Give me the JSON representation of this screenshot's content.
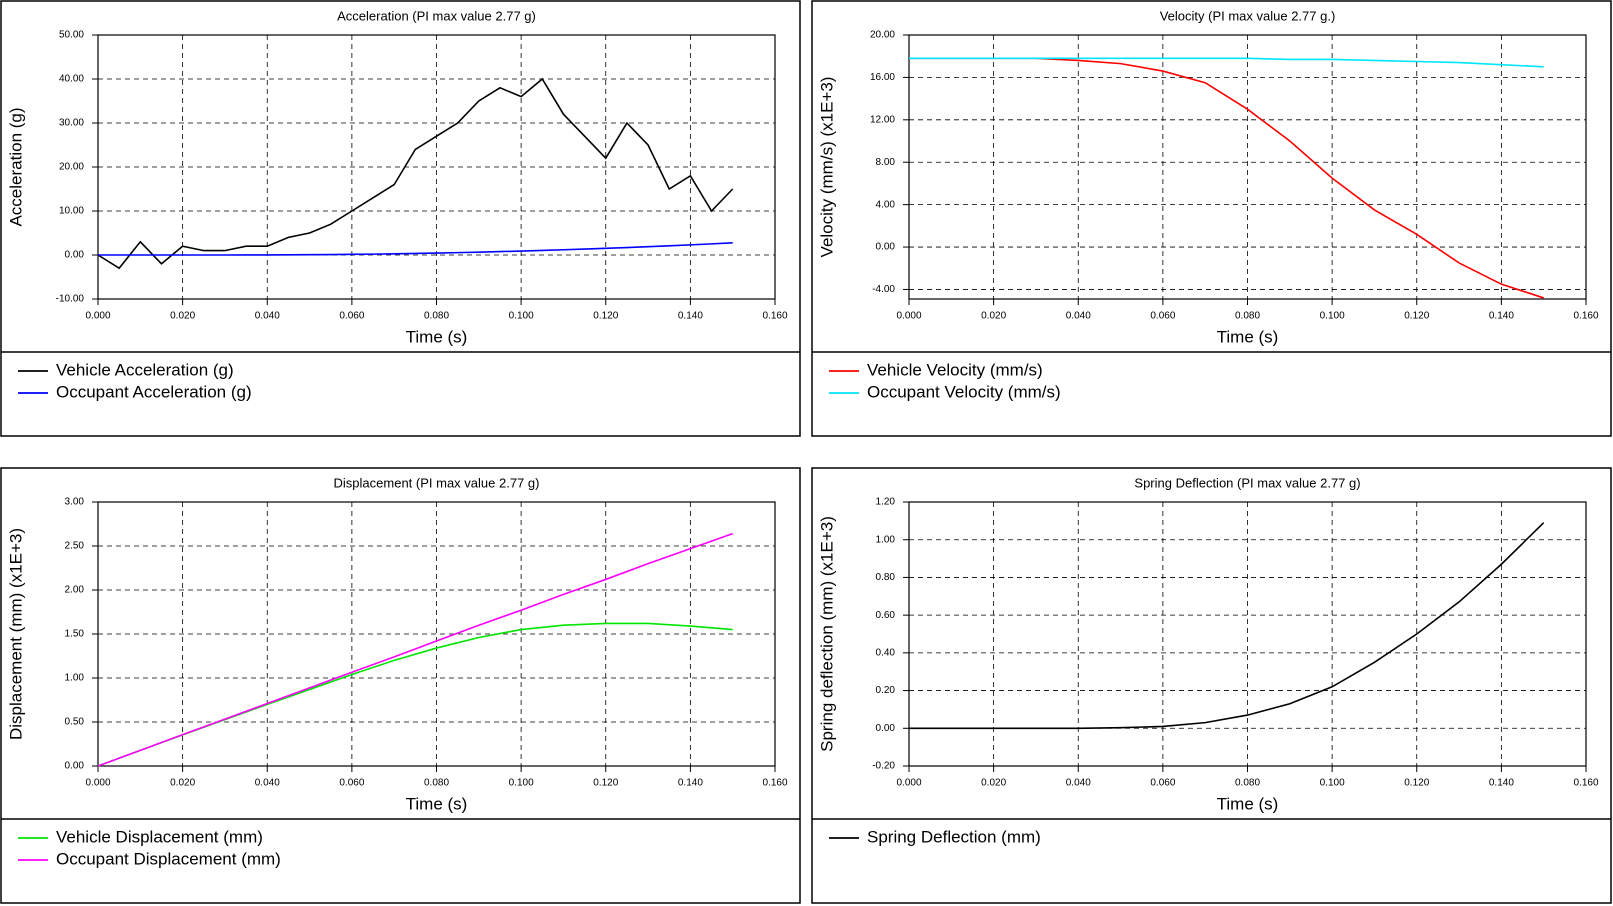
{
  "chart_data": [
    {
      "type": "line",
      "title": "Acceleration (PI max value 2.77 g)",
      "xlabel": "Time (s)",
      "ylabel": "Acceleration (g)",
      "x": [
        0,
        0.005,
        0.01,
        0.015,
        0.02,
        0.025,
        0.03,
        0.035,
        0.04,
        0.045,
        0.05,
        0.055,
        0.06,
        0.065,
        0.07,
        0.075,
        0.08,
        0.085,
        0.09,
        0.095,
        0.1,
        0.105,
        0.11,
        0.115,
        0.12,
        0.125,
        0.13,
        0.135,
        0.14,
        0.145,
        0.15
      ],
      "series": [
        {
          "name": "Vehicle Acceleration (g)",
          "color": "#000000",
          "values": [
            0,
            -3,
            3,
            -2,
            2,
            1,
            1,
            2,
            2,
            4,
            5,
            7,
            10,
            13,
            16,
            24,
            27,
            30,
            35,
            38,
            36,
            40,
            32,
            27,
            22,
            30,
            25,
            15,
            18,
            10,
            15
          ]
        },
        {
          "name": "Occupant Acceleration (g)",
          "color": "#0000ff",
          "values": [
            0,
            0,
            0,
            0,
            0,
            0,
            0,
            0.01,
            0.02,
            0.04,
            0.07,
            0.1,
            0.15,
            0.2,
            0.27,
            0.35,
            0.44,
            0.54,
            0.65,
            0.77,
            0.9,
            1.04,
            1.19,
            1.35,
            1.52,
            1.7,
            1.89,
            2.09,
            2.3,
            2.53,
            2.77
          ]
        }
      ],
      "xlim": [
        0,
        0.16
      ],
      "ylim": [
        -10,
        50
      ],
      "xticks": [
        {
          "value": 0,
          "label": "0.000"
        },
        {
          "value": 0.02,
          "label": "0.020"
        },
        {
          "value": 0.04,
          "label": "0.040"
        },
        {
          "value": 0.06,
          "label": "0.060"
        },
        {
          "value": 0.08,
          "label": "0.080"
        },
        {
          "value": 0.1,
          "label": "0.100"
        },
        {
          "value": 0.12,
          "label": "0.120"
        },
        {
          "value": 0.14,
          "label": "0.140"
        },
        {
          "value": 0.16,
          "label": "0.160"
        }
      ],
      "yticks": [
        {
          "value": -10,
          "label": "-10.00"
        },
        {
          "value": 0,
          "label": "0.00"
        },
        {
          "value": 10,
          "label": "10.00"
        },
        {
          "value": 20,
          "label": "20.00"
        },
        {
          "value": 30,
          "label": "30.00"
        },
        {
          "value": 40,
          "label": "40.00"
        },
        {
          "value": 50,
          "label": "50.00"
        }
      ],
      "grid": true,
      "legend": "bottom"
    },
    {
      "type": "line",
      "title": "Velocity (PI max value 2.77 g.)",
      "xlabel": "Time (s)",
      "ylabel": "Velocity (mm/s) (x1E+3)",
      "x": [
        0,
        0.01,
        0.02,
        0.03,
        0.04,
        0.05,
        0.06,
        0.07,
        0.08,
        0.09,
        0.1,
        0.11,
        0.12,
        0.13,
        0.14,
        0.15
      ],
      "series": [
        {
          "name": "Vehicle Velocity (mm/s)",
          "color": "#ff0000",
          "values": [
            17.8,
            17.8,
            17.8,
            17.8,
            17.6,
            17.3,
            16.6,
            15.5,
            13,
            10,
            6.5,
            3.5,
            1.2,
            -1.5,
            -3.5,
            -4.8
          ]
        },
        {
          "name": "Occupant Velocity (mm/s)",
          "color": "#00e5ff",
          "values": [
            17.8,
            17.8,
            17.8,
            17.8,
            17.8,
            17.8,
            17.8,
            17.8,
            17.8,
            17.7,
            17.7,
            17.6,
            17.5,
            17.4,
            17.2,
            17.0
          ]
        }
      ],
      "xlim": [
        0,
        0.16
      ],
      "ylim": [
        -4.9,
        20
      ],
      "xticks": [
        {
          "value": 0,
          "label": "0.000"
        },
        {
          "value": 0.02,
          "label": "0.020"
        },
        {
          "value": 0.04,
          "label": "0.040"
        },
        {
          "value": 0.06,
          "label": "0.060"
        },
        {
          "value": 0.08,
          "label": "0.080"
        },
        {
          "value": 0.1,
          "label": "0.100"
        },
        {
          "value": 0.12,
          "label": "0.120"
        },
        {
          "value": 0.14,
          "label": "0.140"
        },
        {
          "value": 0.16,
          "label": "0.160"
        }
      ],
      "yticks": [
        {
          "value": -4,
          "label": "-4.00"
        },
        {
          "value": 0,
          "label": "0.00"
        },
        {
          "value": 4,
          "label": "4.00"
        },
        {
          "value": 8,
          "label": "8.00"
        },
        {
          "value": 12,
          "label": "12.00"
        },
        {
          "value": 16,
          "label": "16.00"
        },
        {
          "value": 20,
          "label": "20.00"
        }
      ],
      "grid": true,
      "legend": "bottom"
    },
    {
      "type": "line",
      "title": "Displacement (PI max value 2.77 g)",
      "xlabel": "Time (s)",
      "ylabel": "Displacement (mm) (x1E+3)",
      "x": [
        0,
        0.01,
        0.02,
        0.03,
        0.04,
        0.05,
        0.06,
        0.07,
        0.08,
        0.09,
        0.1,
        0.11,
        0.12,
        0.13,
        0.14,
        0.15
      ],
      "series": [
        {
          "name": "Vehicle Displacement (mm)",
          "color": "#00e600",
          "values": [
            0,
            0.178,
            0.354,
            0.527,
            0.7,
            0.87,
            1.04,
            1.2,
            1.34,
            1.46,
            1.55,
            1.6,
            1.62,
            1.62,
            1.59,
            1.55
          ]
        },
        {
          "name": "Occupant Displacement (mm)",
          "color": "#ff00ff",
          "values": [
            0,
            0.178,
            0.356,
            0.533,
            0.71,
            0.888,
            1.065,
            1.24,
            1.42,
            1.6,
            1.77,
            1.95,
            2.12,
            2.3,
            2.47,
            2.64
          ]
        }
      ],
      "xlim": [
        0,
        0.16
      ],
      "ylim": [
        0,
        3
      ],
      "xticks": [
        {
          "value": 0,
          "label": "0.000"
        },
        {
          "value": 0.02,
          "label": "0.020"
        },
        {
          "value": 0.04,
          "label": "0.040"
        },
        {
          "value": 0.06,
          "label": "0.060"
        },
        {
          "value": 0.08,
          "label": "0.080"
        },
        {
          "value": 0.1,
          "label": "0.100"
        },
        {
          "value": 0.12,
          "label": "0.120"
        },
        {
          "value": 0.14,
          "label": "0.140"
        },
        {
          "value": 0.16,
          "label": "0.160"
        }
      ],
      "yticks": [
        {
          "value": 0,
          "label": "0.00"
        },
        {
          "value": 0.5,
          "label": "0.50"
        },
        {
          "value": 1,
          "label": "1.00"
        },
        {
          "value": 1.5,
          "label": "1.50"
        },
        {
          "value": 2,
          "label": "2.00"
        },
        {
          "value": 2.5,
          "label": "2.50"
        },
        {
          "value": 3,
          "label": "3.00"
        }
      ],
      "grid": true,
      "legend": "bottom"
    },
    {
      "type": "line",
      "title": "Spring Deflection (PI max value 2.77 g)",
      "xlabel": "Time (s)",
      "ylabel": "Spring deflection (mm) (x1E+3)",
      "x": [
        0,
        0.01,
        0.02,
        0.03,
        0.04,
        0.05,
        0.06,
        0.07,
        0.08,
        0.09,
        0.1,
        0.11,
        0.12,
        0.13,
        0.14,
        0.15
      ],
      "series": [
        {
          "name": "Spring Deflection (mm)",
          "color": "#000000",
          "values": [
            0,
            0,
            0,
            0,
            0,
            0.003,
            0.01,
            0.03,
            0.07,
            0.13,
            0.22,
            0.35,
            0.5,
            0.67,
            0.87,
            1.09
          ]
        }
      ],
      "xlim": [
        0,
        0.16
      ],
      "ylim": [
        -0.2,
        1.2
      ],
      "xticks": [
        {
          "value": 0,
          "label": "0.000"
        },
        {
          "value": 0.02,
          "label": "0.020"
        },
        {
          "value": 0.04,
          "label": "0.040"
        },
        {
          "value": 0.06,
          "label": "0.060"
        },
        {
          "value": 0.08,
          "label": "0.080"
        },
        {
          "value": 0.1,
          "label": "0.100"
        },
        {
          "value": 0.12,
          "label": "0.120"
        },
        {
          "value": 0.14,
          "label": "0.140"
        },
        {
          "value": 0.16,
          "label": "0.160"
        }
      ],
      "yticks": [
        {
          "value": -0.2,
          "label": "-0.20"
        },
        {
          "value": 0,
          "label": "0.00"
        },
        {
          "value": 0.2,
          "label": "0.20"
        },
        {
          "value": 0.4,
          "label": "0.40"
        },
        {
          "value": 0.6,
          "label": "0.60"
        },
        {
          "value": 0.8,
          "label": "0.80"
        },
        {
          "value": 1,
          "label": "1.00"
        },
        {
          "value": 1.2,
          "label": "1.20"
        }
      ],
      "grid": true,
      "legend": "bottom"
    }
  ]
}
